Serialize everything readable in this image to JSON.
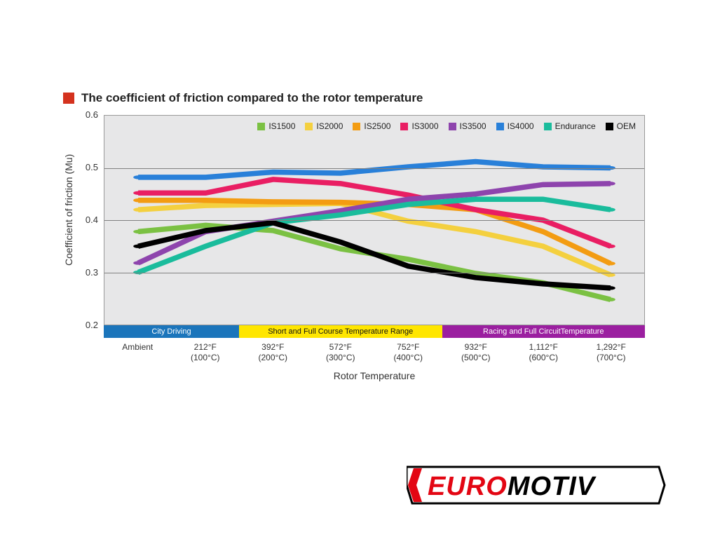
{
  "title": {
    "marker_color": "#d4321e",
    "text": "The coefficient of friction compared to the rotor temperature",
    "fontsize": 17
  },
  "chart": {
    "type": "line",
    "plot_bg": "#e7e7e8",
    "grid_color": "#808080",
    "y_axis": {
      "label": "Coefficient of friction (Mu)",
      "min": 0.2,
      "max": 0.6,
      "ticks": [
        0.6,
        0.5,
        0.4,
        0.3,
        0.2
      ],
      "tick_labels": [
        "0.6",
        "0.5",
        "0.4",
        "0.3",
        "0.2"
      ]
    },
    "x_axis": {
      "label": "Rotor Temperature",
      "categories": [
        "Ambient",
        "212°F\n(100°C)",
        "392°F\n(200°C)",
        "572°F\n(300°C)",
        "752°F\n(400°C)",
        "932°F\n(500°C)",
        "1,112°F\n(600°C)",
        "1,292°F\n(700°C)"
      ]
    },
    "series": [
      {
        "name": "IS1500",
        "color": "#7bc143",
        "values": [
          0.378,
          0.39,
          0.38,
          0.345,
          0.325,
          0.298,
          0.28,
          0.248
        ],
        "width": 2.5,
        "marker": "circle"
      },
      {
        "name": "IS2000",
        "color": "#f4d03f",
        "values": [
          0.42,
          0.428,
          0.43,
          0.432,
          0.398,
          0.378,
          0.35,
          0.295
        ],
        "width": 2.5,
        "marker": "circle"
      },
      {
        "name": "IS2500",
        "color": "#f39c12",
        "values": [
          0.438,
          0.438,
          0.435,
          0.434,
          0.43,
          0.42,
          0.378,
          0.317
        ],
        "width": 2.5,
        "marker": "circle"
      },
      {
        "name": "IS3000",
        "color": "#e91e63",
        "values": [
          0.452,
          0.452,
          0.478,
          0.47,
          0.448,
          0.42,
          0.4,
          0.35
        ],
        "width": 2.5,
        "marker": "circle"
      },
      {
        "name": "IS3500",
        "color": "#8e44ad",
        "values": [
          0.318,
          0.378,
          0.398,
          0.418,
          0.44,
          0.45,
          0.468,
          0.47
        ],
        "width": 2.5,
        "marker": "circle"
      },
      {
        "name": "IS4000",
        "color": "#2980d9",
        "values": [
          0.482,
          0.482,
          0.492,
          0.49,
          0.502,
          0.512,
          0.502,
          0.5
        ],
        "width": 2.5,
        "marker": "circle"
      },
      {
        "name": "Endurance",
        "color": "#1abc9c",
        "values": [
          0.3,
          0.35,
          0.395,
          0.41,
          0.43,
          0.44,
          0.44,
          0.42
        ],
        "width": 2.5,
        "marker": "circle"
      },
      {
        "name": "OEM",
        "color": "#000000",
        "values": [
          0.35,
          0.38,
          0.395,
          0.358,
          0.312,
          0.29,
          0.278,
          0.27
        ],
        "width": 2.5,
        "marker": "circle"
      }
    ],
    "range_bands": [
      {
        "label": "City Driving",
        "color": "#1b75bb",
        "from": 0,
        "to": 2
      },
      {
        "label": "Short and Full Course Temperature Range",
        "color": "#ffe600",
        "text_color": "#111111",
        "from": 2,
        "to": 5
      },
      {
        "label": "Racing and Full CircuitTemperature",
        "color": "#9b1fa0",
        "from": 5,
        "to": 8
      }
    ]
  },
  "logo": {
    "part1": "EURO",
    "part1_color": "#e30613",
    "part2": "MOTIV",
    "part2_color": "#000000",
    "outline": "#000000"
  }
}
